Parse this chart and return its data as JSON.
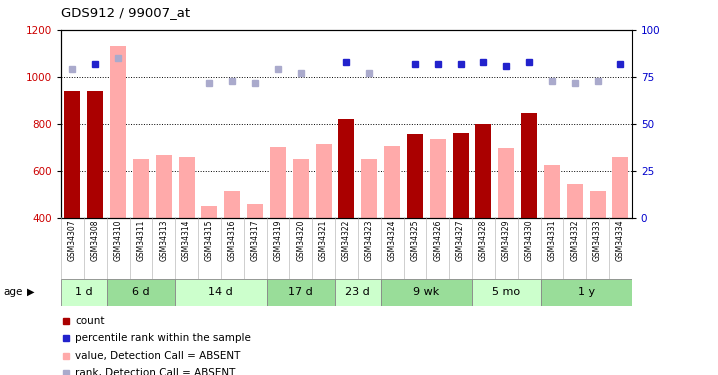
{
  "title": "GDS912 / 99007_at",
  "samples": [
    "GSM34307",
    "GSM34308",
    "GSM34310",
    "GSM34311",
    "GSM34313",
    "GSM34314",
    "GSM34315",
    "GSM34316",
    "GSM34317",
    "GSM34319",
    "GSM34320",
    "GSM34321",
    "GSM34322",
    "GSM34323",
    "GSM34324",
    "GSM34325",
    "GSM34326",
    "GSM34327",
    "GSM34328",
    "GSM34329",
    "GSM34330",
    "GSM34331",
    "GSM34332",
    "GSM34333",
    "GSM34334"
  ],
  "count_values": [
    940,
    940,
    null,
    null,
    null,
    null,
    null,
    null,
    null,
    null,
    null,
    null,
    820,
    null,
    null,
    755,
    null,
    760,
    800,
    null,
    848,
    null,
    null,
    null,
    null
  ],
  "value_absent": [
    860,
    null,
    1130,
    648,
    668,
    660,
    448,
    515,
    458,
    700,
    648,
    715,
    null,
    648,
    705,
    null,
    737,
    null,
    null,
    698,
    null,
    622,
    545,
    513,
    658
  ],
  "rank_present": [
    null,
    82,
    null,
    null,
    null,
    null,
    null,
    null,
    null,
    null,
    null,
    null,
    83,
    null,
    null,
    82,
    82,
    82,
    83,
    81,
    83,
    null,
    null,
    null,
    82
  ],
  "rank_absent": [
    79,
    null,
    85,
    null,
    null,
    null,
    72,
    73,
    72,
    79,
    77,
    null,
    null,
    77,
    null,
    null,
    null,
    null,
    null,
    null,
    null,
    73,
    72,
    73,
    null
  ],
  "age_groups": [
    {
      "label": "1 d",
      "start": 0,
      "end": 2
    },
    {
      "label": "6 d",
      "start": 2,
      "end": 5
    },
    {
      "label": "14 d",
      "start": 5,
      "end": 9
    },
    {
      "label": "17 d",
      "start": 9,
      "end": 12
    },
    {
      "label": "23 d",
      "start": 12,
      "end": 14
    },
    {
      "label": "9 wk",
      "start": 14,
      "end": 18
    },
    {
      "label": "5 mo",
      "start": 18,
      "end": 21
    },
    {
      "label": "1 y",
      "start": 21,
      "end": 25
    }
  ],
  "ylim_left": [
    400,
    1200
  ],
  "ylim_right": [
    0,
    100
  ],
  "yticks_left": [
    400,
    600,
    800,
    1000,
    1200
  ],
  "yticks_right": [
    0,
    25,
    50,
    75,
    100
  ],
  "color_count": "#aa0000",
  "color_rank_present": "#2222cc",
  "color_value_absent": "#ffaaaa",
  "color_rank_absent": "#aaaacc",
  "legend_items": [
    {
      "label": "count",
      "color": "#aa0000"
    },
    {
      "label": "percentile rank within the sample",
      "color": "#2222cc"
    },
    {
      "label": "value, Detection Call = ABSENT",
      "color": "#ffaaaa"
    },
    {
      "label": "rank, Detection Call = ABSENT",
      "color": "#aaaacc"
    }
  ],
  "age_green_light": "#ccffcc",
  "age_green_dark": "#99dd99",
  "age_border": "#888888",
  "bar_width": 0.7
}
